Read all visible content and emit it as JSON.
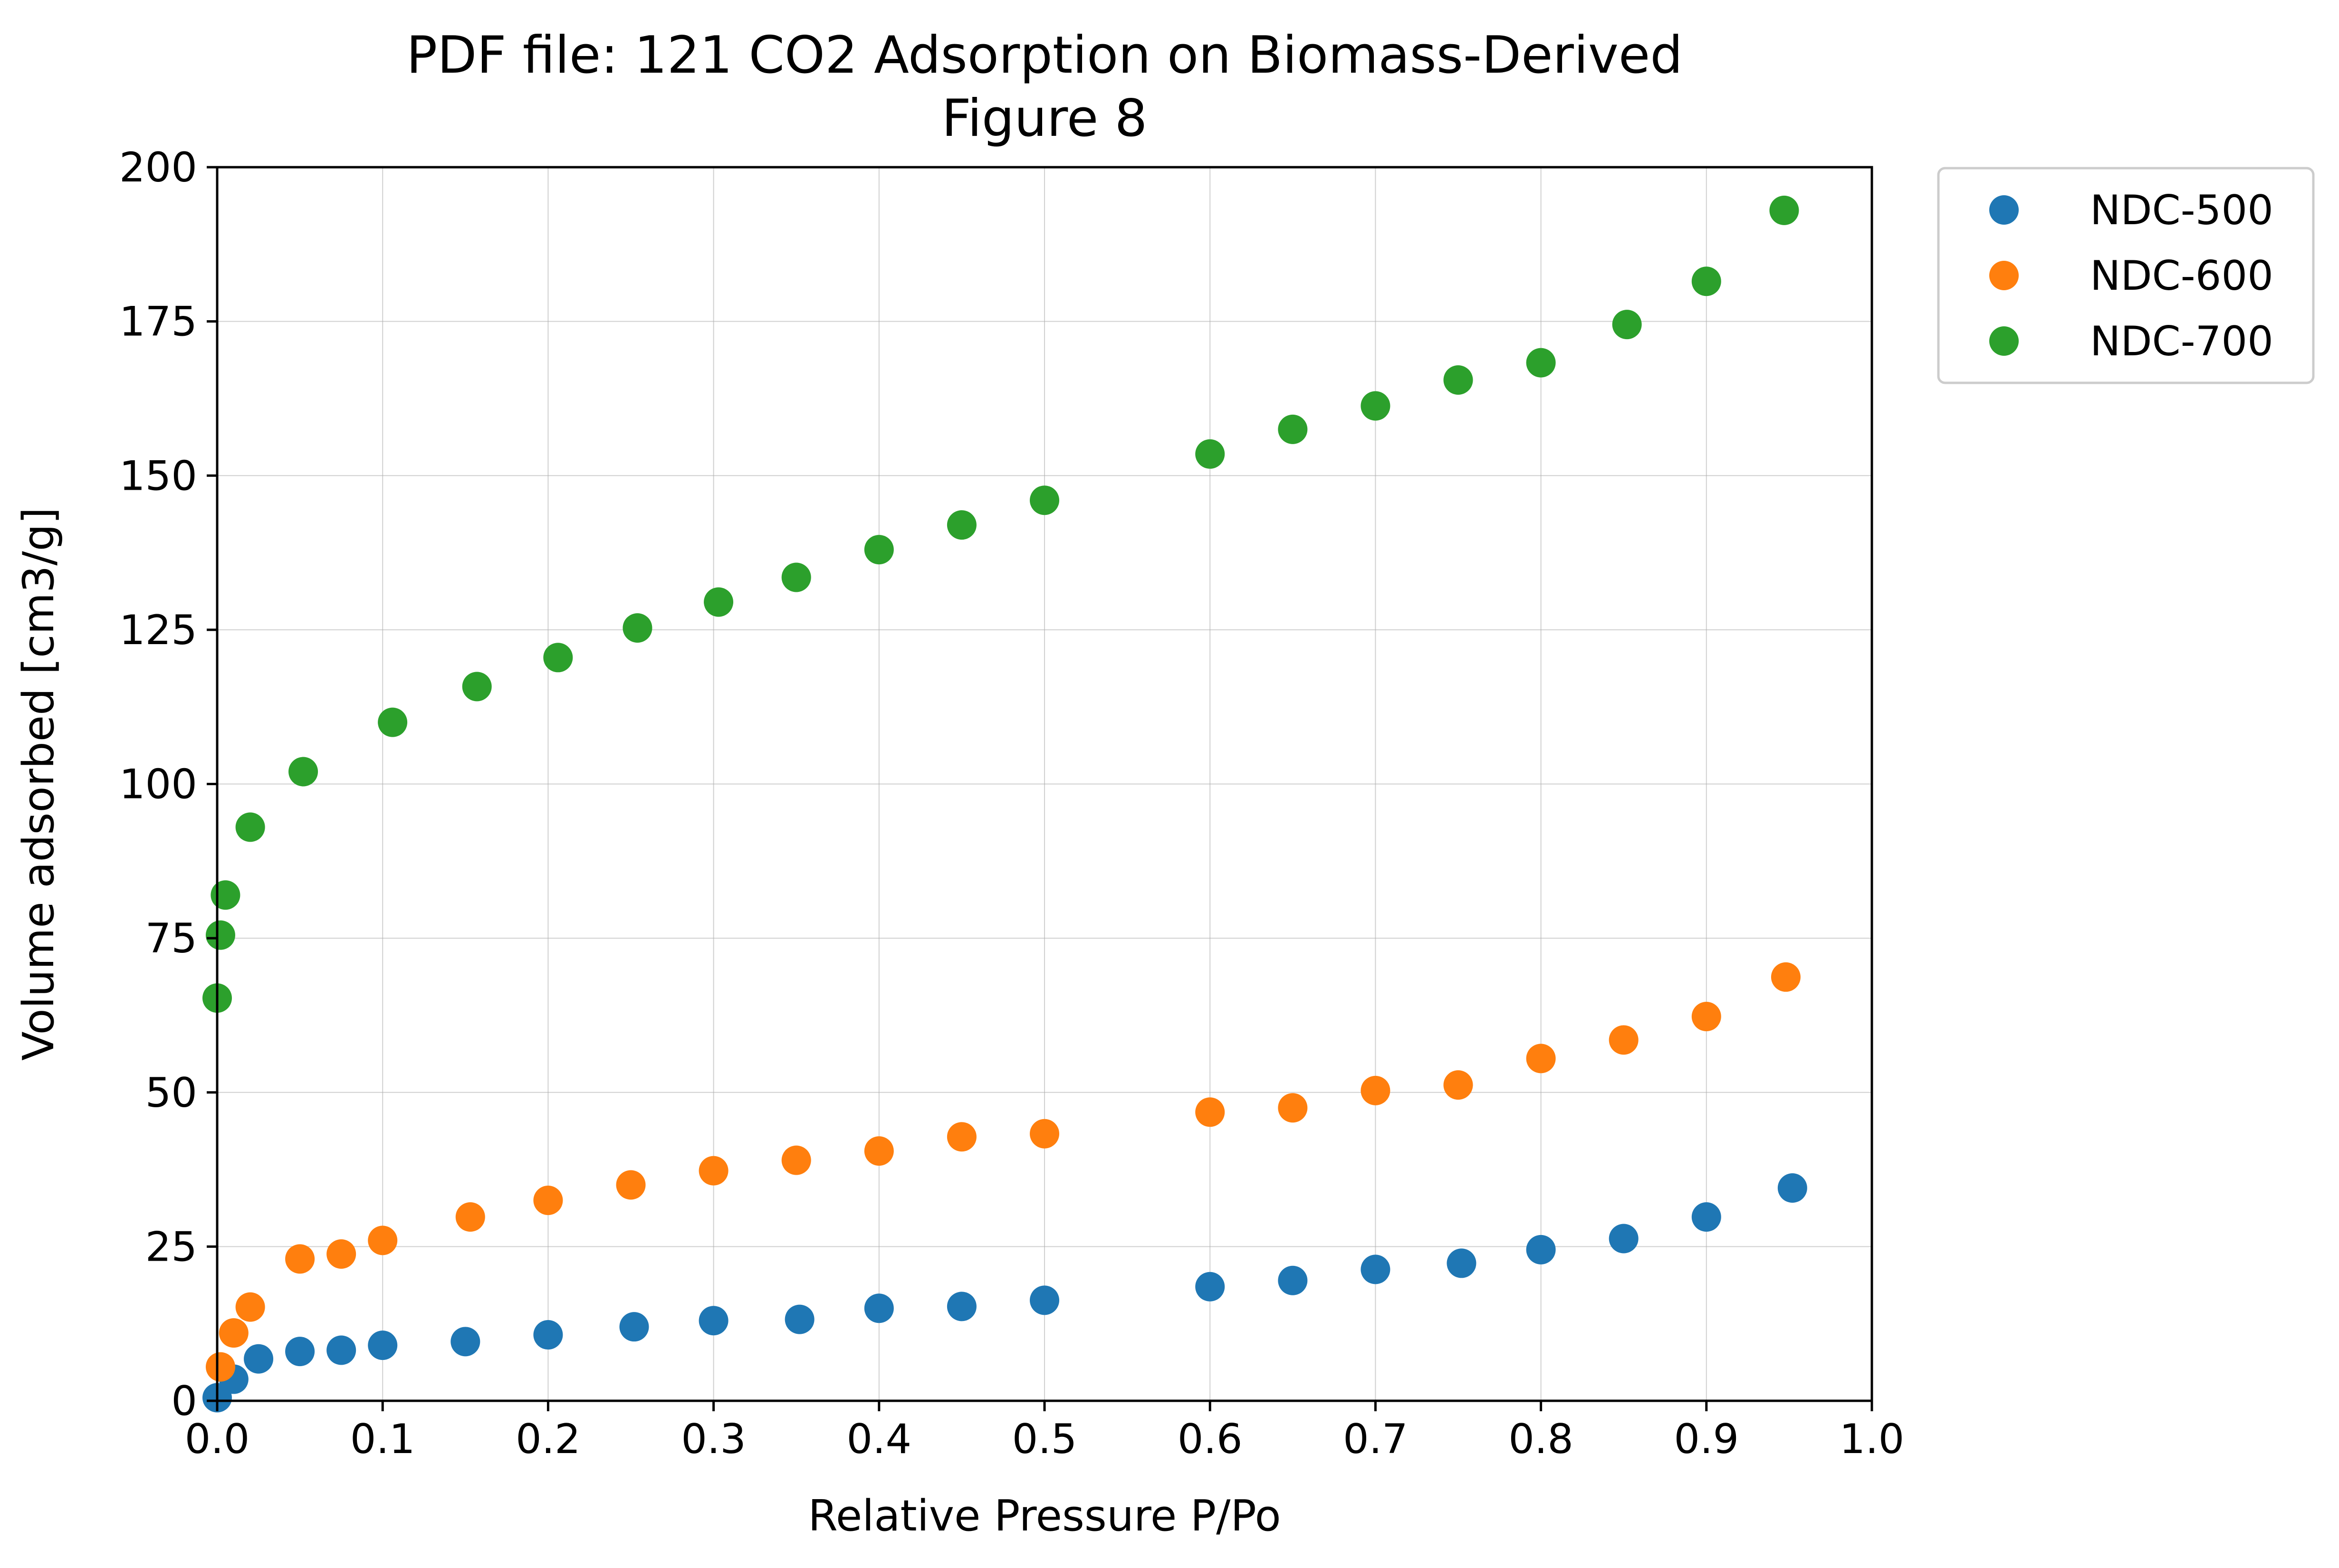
{
  "chart_data": {
    "type": "scatter",
    "title": "PDF file: 121 CO2 Adsorption on Biomass-Derived",
    "subtitle": "Figure 8",
    "xlabel": "Relative Pressure P/Po",
    "ylabel": "Volume adsorbed [cm3/g]",
    "xlim": [
      0.0,
      1.0
    ],
    "ylim": [
      0,
      200
    ],
    "xticks": [
      "0.0",
      "0.1",
      "0.2",
      "0.3",
      "0.4",
      "0.5",
      "0.6",
      "0.7",
      "0.8",
      "0.9",
      "1.0"
    ],
    "yticks": [
      "0",
      "25",
      "50",
      "75",
      "100",
      "125",
      "150",
      "175",
      "200"
    ],
    "grid": true,
    "legend_position": "outside top-right",
    "series": [
      {
        "name": "NDC-500",
        "color": "#1f77b4",
        "points": [
          {
            "x": 0.0,
            "y": 0.5
          },
          {
            "x": 0.01,
            "y": 3.5
          },
          {
            "x": 0.025,
            "y": 6.8
          },
          {
            "x": 0.05,
            "y": 8.0
          },
          {
            "x": 0.075,
            "y": 8.2
          },
          {
            "x": 0.1,
            "y": 9.0
          },
          {
            "x": 0.15,
            "y": 9.6
          },
          {
            "x": 0.2,
            "y": 10.7
          },
          {
            "x": 0.252,
            "y": 12.0
          },
          {
            "x": 0.3,
            "y": 13.0
          },
          {
            "x": 0.352,
            "y": 13.2
          },
          {
            "x": 0.4,
            "y": 15.0
          },
          {
            "x": 0.45,
            "y": 15.3
          },
          {
            "x": 0.5,
            "y": 16.3
          },
          {
            "x": 0.6,
            "y": 18.5
          },
          {
            "x": 0.65,
            "y": 19.5
          },
          {
            "x": 0.7,
            "y": 21.3
          },
          {
            "x": 0.752,
            "y": 22.3
          },
          {
            "x": 0.8,
            "y": 24.5
          },
          {
            "x": 0.85,
            "y": 26.3
          },
          {
            "x": 0.9,
            "y": 29.8
          },
          {
            "x": 0.952,
            "y": 34.5
          }
        ]
      },
      {
        "name": "NDC-600",
        "color": "#ff7f0e",
        "points": [
          {
            "x": 0.002,
            "y": 5.5
          },
          {
            "x": 0.01,
            "y": 11.0
          },
          {
            "x": 0.02,
            "y": 15.2
          },
          {
            "x": 0.05,
            "y": 23.0
          },
          {
            "x": 0.075,
            "y": 23.8
          },
          {
            "x": 0.1,
            "y": 26.0
          },
          {
            "x": 0.153,
            "y": 29.8
          },
          {
            "x": 0.2,
            "y": 32.5
          },
          {
            "x": 0.25,
            "y": 35.0
          },
          {
            "x": 0.3,
            "y": 37.3
          },
          {
            "x": 0.35,
            "y": 39.0
          },
          {
            "x": 0.4,
            "y": 40.5
          },
          {
            "x": 0.45,
            "y": 42.8
          },
          {
            "x": 0.5,
            "y": 43.3
          },
          {
            "x": 0.6,
            "y": 46.8
          },
          {
            "x": 0.65,
            "y": 47.5
          },
          {
            "x": 0.7,
            "y": 50.3
          },
          {
            "x": 0.75,
            "y": 51.2
          },
          {
            "x": 0.8,
            "y": 55.5
          },
          {
            "x": 0.85,
            "y": 58.5
          },
          {
            "x": 0.9,
            "y": 62.3
          },
          {
            "x": 0.948,
            "y": 68.7
          }
        ]
      },
      {
        "name": "NDC-700",
        "color": "#2ca02c",
        "points": [
          {
            "x": 0.0,
            "y": 65.3
          },
          {
            "x": 0.002,
            "y": 75.5
          },
          {
            "x": 0.005,
            "y": 82.0
          },
          {
            "x": 0.02,
            "y": 93.0
          },
          {
            "x": 0.052,
            "y": 102.0
          },
          {
            "x": 0.106,
            "y": 110.0
          },
          {
            "x": 0.157,
            "y": 115.8
          },
          {
            "x": 0.206,
            "y": 120.5
          },
          {
            "x": 0.254,
            "y": 125.3
          },
          {
            "x": 0.303,
            "y": 129.5
          },
          {
            "x": 0.35,
            "y": 133.5
          },
          {
            "x": 0.4,
            "y": 138.0
          },
          {
            "x": 0.45,
            "y": 142.0
          },
          {
            "x": 0.5,
            "y": 146.0
          },
          {
            "x": 0.6,
            "y": 153.5
          },
          {
            "x": 0.65,
            "y": 157.5
          },
          {
            "x": 0.7,
            "y": 161.3
          },
          {
            "x": 0.75,
            "y": 165.5
          },
          {
            "x": 0.8,
            "y": 168.3
          },
          {
            "x": 0.852,
            "y": 174.5
          },
          {
            "x": 0.9,
            "y": 181.5
          },
          {
            "x": 0.947,
            "y": 193.0
          }
        ]
      }
    ]
  }
}
